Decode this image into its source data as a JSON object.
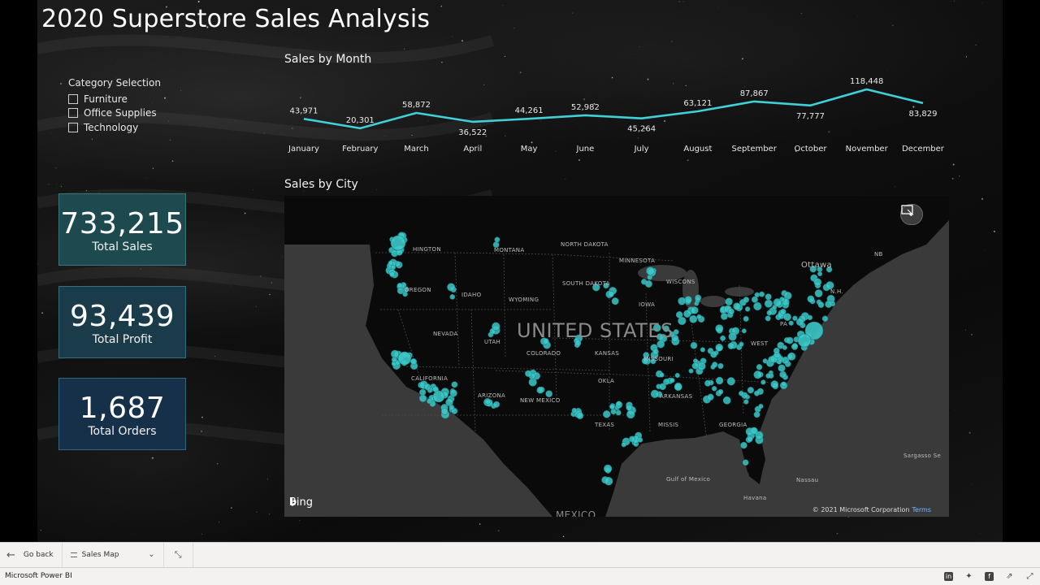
{
  "report": {
    "title": "2020 Superstore Sales Analysis"
  },
  "slicer": {
    "title": "Category Selection",
    "items": [
      "Furniture",
      "Office Supplies",
      "Technology"
    ]
  },
  "kpis": [
    {
      "value": "733,215",
      "label": "Total Sales",
      "color": "#1d4a4f"
    },
    {
      "value": "93,439",
      "label": "Total Profit",
      "color": "#1a3c4a"
    },
    {
      "value": "1,687",
      "label": "Total Orders",
      "color": "#17304a"
    }
  ],
  "line_chart": {
    "title": "Sales by Month"
  },
  "map": {
    "title": "Sales by City",
    "country_label": "UNITED STATES",
    "bing_label": "Bing",
    "copyright": "© 2021 Microsoft Corporation",
    "terms": "Terms",
    "region_labels": {
      "montana": "MONTANA",
      "north_dakota": "NORTH DAKOTA",
      "minnesota": "MINNESOTA",
      "washington": "HINGTON",
      "oregon": "OREGON",
      "idaho": "IDAHO",
      "wyoming": "WYOMING",
      "south_dakota": "SOUTH DAKOTA",
      "wisconsin": "WISCONS",
      "iowa": "IOWA",
      "nevada": "NEVADA",
      "utah": "UTAH",
      "colorado": "COLORADO",
      "kansas": "KANSAS",
      "missouri": "MISSOURI",
      "california": "CALIFORNIA",
      "arizona": "ARIZONA",
      "new_mexico": "NEW MEXICO",
      "oklahoma": "OKLA",
      "arkansas": "ARKANSAS",
      "texas": "TEXAS",
      "mississippi": "MISSIS",
      "georgia": "GEORGIA",
      "west_virginia": "WEST",
      "pennsylvania": "PA",
      "ottawa": "Ottawa",
      "nb": "NB",
      "nh": "N.H.",
      "gulf": "Gulf of Mexico",
      "mexico": "MEXICO",
      "havana": "Havana",
      "nassau": "Nassau",
      "sargasso": "Sargasso Se"
    },
    "marker_color": "#3cc8c8"
  },
  "chart_data": {
    "type": "line",
    "title": "Sales by Month",
    "categories": [
      "January",
      "February",
      "March",
      "April",
      "May",
      "June",
      "July",
      "August",
      "September",
      "October",
      "November",
      "December"
    ],
    "values": [
      43971,
      20301,
      58872,
      36522,
      44261,
      52982,
      45264,
      63121,
      87867,
      77777,
      118448,
      83829
    ],
    "labels": [
      "43,971",
      "20,301",
      "58,872",
      "36,522",
      "44,261",
      "52,982",
      "45,264",
      "63,121",
      "87,867",
      "77,777",
      "118,448",
      "83,829"
    ],
    "color": "#40d0d8",
    "xlabel": "",
    "ylabel": ""
  },
  "nav": {
    "go_back": "Go back",
    "page": "Sales Map"
  },
  "status": {
    "app_name": "Microsoft Power BI"
  }
}
